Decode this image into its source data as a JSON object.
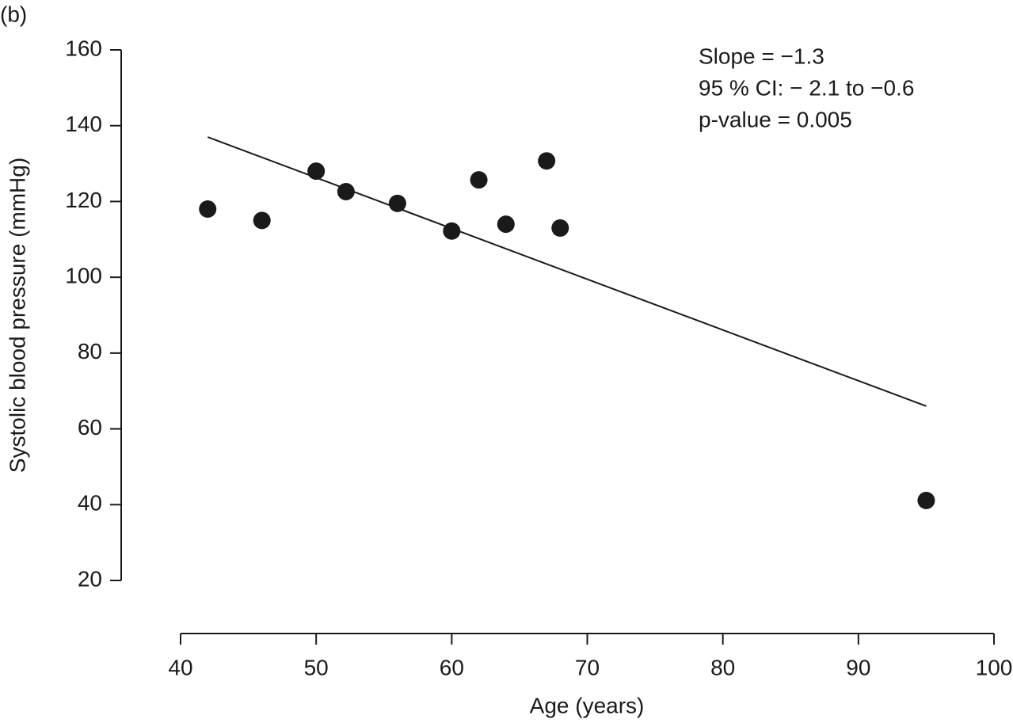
{
  "chart_data": {
    "type": "scatter",
    "panel_label": "(b)",
    "xlabel": "Age (years)",
    "ylabel": "Systolic blood pressure (mmHg)",
    "annotations": [
      "Slope = −1.3",
      "95 % CI: − 2.1 to −0.6",
      "p-value = 0.005"
    ],
    "x": [
      42,
      46,
      50,
      52.2,
      56,
      60,
      62,
      64,
      67,
      68,
      95
    ],
    "y": [
      118,
      115,
      128,
      122.6,
      119.5,
      112.2,
      125.7,
      114,
      130.7,
      113,
      41.1
    ],
    "color": "#1a1a1a",
    "fit": {
      "x": [
        42,
        95
      ],
      "y": [
        137,
        66
      ]
    },
    "xlim": [
      40,
      100
    ],
    "xticks": [
      40,
      50,
      60,
      70,
      80,
      90,
      100
    ],
    "ylim": [
      20,
      160
    ],
    "yticks": [
      20,
      40,
      60,
      80,
      100,
      120,
      140,
      160
    ]
  }
}
